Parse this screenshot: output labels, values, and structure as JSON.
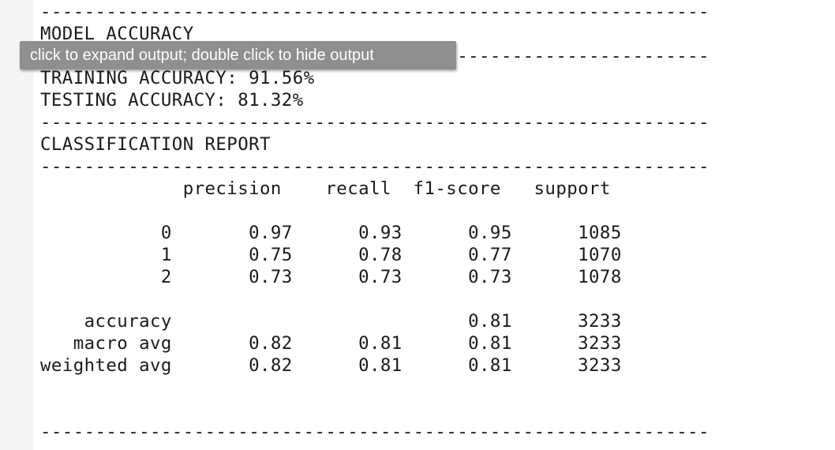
{
  "tooltip": {
    "text": "click to expand output; double click to hide output"
  },
  "output": {
    "lines": [
      "-------------------------------------------------------------",
      "MODEL ACCURACY",
      "-------------------------------------------------------------",
      "TRAINING ACCURACY: 91.56%",
      "TESTING ACCURACY: 81.32%",
      "-------------------------------------------------------------",
      "CLASSIFICATION REPORT",
      "-------------------------------------------------------------",
      "             precision    recall  f1-score   support",
      "",
      "           0       0.97      0.93      0.95      1085",
      "           1       0.75      0.78      0.77      1070",
      "           2       0.73      0.73      0.73      1078",
      "",
      "    accuracy                           0.81      3233",
      "   macro avg       0.82      0.81      0.81      3233",
      "weighted avg       0.82      0.81      0.81      3233",
      "",
      "",
      "-------------------------------------------------------------"
    ]
  }
}
